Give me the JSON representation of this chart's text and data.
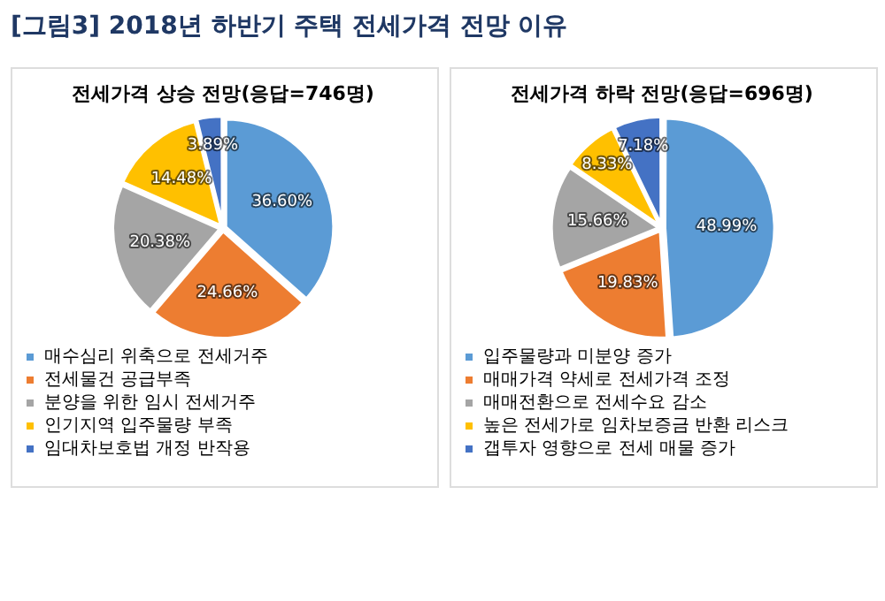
{
  "chart_data": [
    {
      "type": "pie",
      "title": "전세가격 상승 전망(응답=746명)",
      "annotations": [
        "[그림3] 2018년 하반기 주택 전세가격 전망 이유"
      ],
      "categories": [
        "매수심리 위축으로 전세거주",
        "전세물건 공급부족",
        "분양을 위한 임시 전세거주",
        "인기지역 입주물량 부족",
        "임대차보호법 개정 반작용"
      ],
      "values": [
        36.6,
        24.66,
        20.38,
        14.48,
        3.89
      ],
      "value_labels": [
        "36.60%",
        "24.66%",
        "20.38%",
        "14.48%",
        "3.89%"
      ],
      "colors": [
        "#5b9bd5",
        "#ed7d31",
        "#a5a5a5",
        "#ffc000",
        "#4472c4"
      ],
      "legend": "bottom"
    },
    {
      "type": "pie",
      "title": "전세가격 하락 전망(응답=696명)",
      "categories": [
        "입주물량과 미분양 증가",
        "매매가격 약세로 전세가격 조정",
        "매매전환으로 전세수요 감소",
        "높은 전세가로 임차보증금 반환 리스크",
        "갭투자 영향으로 전세 매물 증가"
      ],
      "values": [
        48.99,
        19.83,
        15.66,
        8.33,
        7.18
      ],
      "value_labels": [
        "48.99%",
        "19.83%",
        "15.66%",
        "8.33%",
        "7.18%"
      ],
      "colors": [
        "#5b9bd5",
        "#ed7d31",
        "#a5a5a5",
        "#ffc000",
        "#4472c4"
      ],
      "legend": "bottom"
    }
  ]
}
